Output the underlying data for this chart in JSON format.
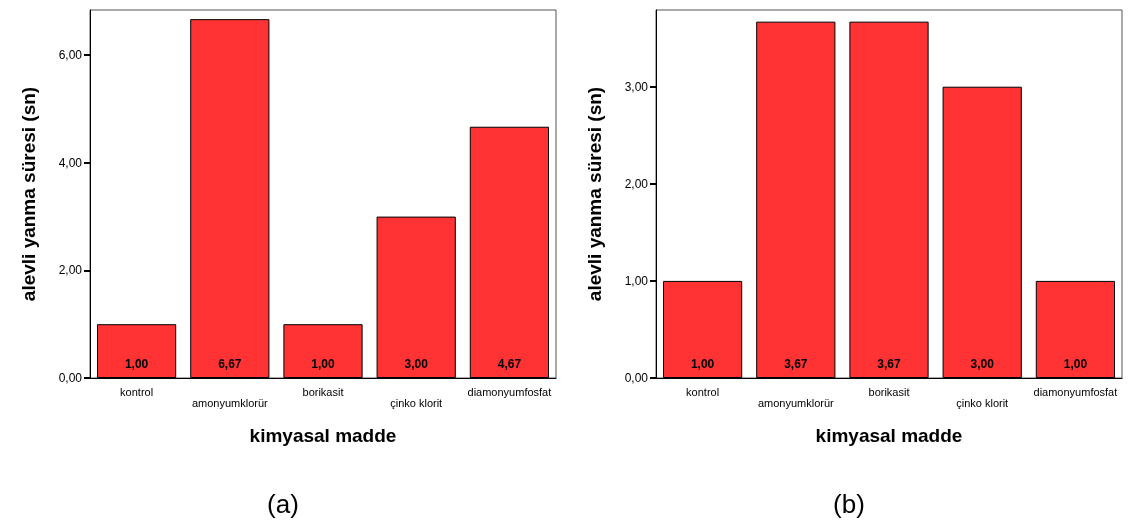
{
  "chart_data": [
    {
      "type": "bar",
      "title": "(a)",
      "xlabel": "kimyasal madde",
      "ylabel": "alevli yanma süresi (sn)",
      "categories": [
        "kontrol",
        "amonyumklorür",
        "borikasit",
        "çinko klorit",
        "diamonyumfosfat"
      ],
      "values": [
        1.0,
        6.67,
        1.0,
        3.0,
        4.67
      ],
      "value_labels": [
        "1,00",
        "6,67",
        "1,00",
        "3,00",
        "4,67"
      ],
      "color": "#ff3333",
      "ylim": [
        0,
        6.84
      ],
      "yticks": [
        {
          "value": 0,
          "label": "0,00"
        },
        {
          "value": 2,
          "label": "2,00"
        },
        {
          "value": 4,
          "label": "4,00"
        },
        {
          "value": 6,
          "label": "6,00"
        }
      ],
      "grid": false
    },
    {
      "type": "bar",
      "title": "(b)",
      "xlabel": "kimyasal madde",
      "ylabel": "alevli yanma süresi (sn)",
      "categories": [
        "kontrol",
        "amonyumklorür",
        "borikasit",
        "çinko klorit",
        "diamonyumfosfat"
      ],
      "values": [
        1.0,
        3.67,
        3.67,
        3.0,
        1.0
      ],
      "value_labels": [
        "1,00",
        "3,67",
        "3,67",
        "3,00",
        "1,00"
      ],
      "color": "#ff3333",
      "ylim": [
        0,
        3.79
      ],
      "yticks": [
        {
          "value": 0,
          "label": "0,00"
        },
        {
          "value": 1,
          "label": "1,00"
        },
        {
          "value": 2,
          "label": "2,00"
        },
        {
          "value": 3,
          "label": "3,00"
        }
      ],
      "grid": false
    }
  ]
}
